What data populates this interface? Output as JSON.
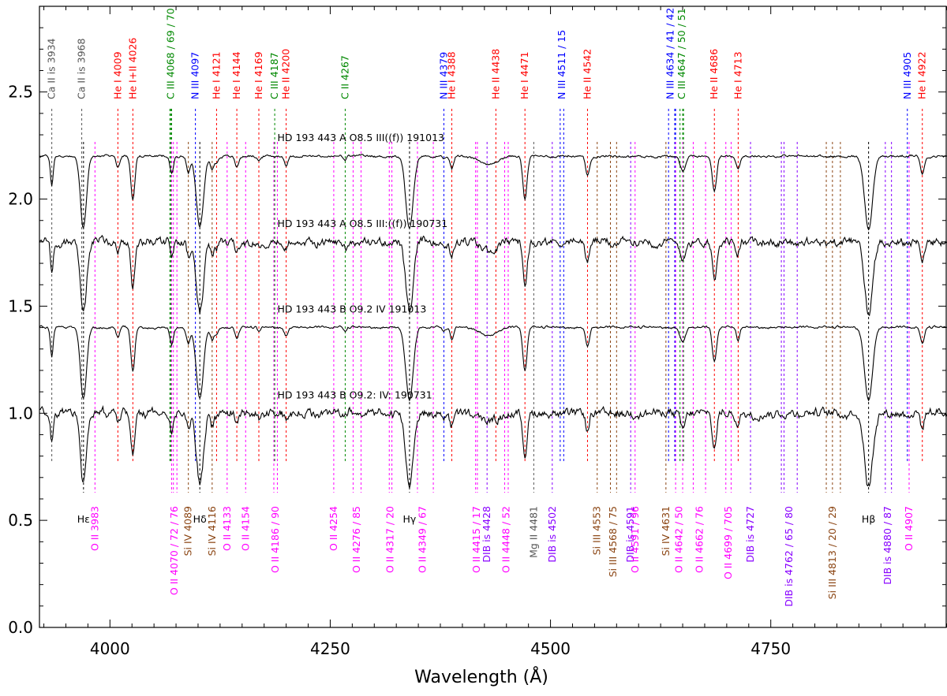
{
  "chart_data": {
    "type": "line",
    "xlabel": "Wavelength (Å)",
    "ylabel": "",
    "xlim": [
      3920,
      4950
    ],
    "ylim": [
      0.0,
      2.9
    ],
    "xticks": [
      4000,
      4250,
      4500,
      4750
    ],
    "xtick_labels": [
      "4000",
      "4250",
      "4500",
      "4750"
    ],
    "yticks": [
      0.0,
      0.5,
      1.0,
      1.5,
      2.0,
      2.5
    ],
    "ytick_labels": [
      "0.0",
      "0.5",
      "1.0",
      "1.5",
      "2.0",
      "2.5"
    ],
    "colors": {
      "spectrum": "#000000",
      "ca": "#555555",
      "he": "#ff0000",
      "c": "#008800",
      "n": "#0000ff",
      "o": "#ff00ff",
      "si": "#8b4513",
      "dib": "#8800ff",
      "h": "#000000",
      "mg": "#555555"
    },
    "series": [
      {
        "name": "HD 193 443 A   O8.5 III((f)) 191013",
        "offset": 2.2,
        "noise": 0.008,
        "depth_scale": 1.0,
        "label_x": 4190
      },
      {
        "name": "HD 193 443 A   O8.5 III:((f)) 190731",
        "offset": 1.8,
        "noise": 0.028,
        "depth_scale": 1.0,
        "label_x": 4190
      },
      {
        "name": "HD 193 443 B   O9.2 IV 191013",
        "offset": 1.4,
        "noise": 0.008,
        "depth_scale": 1.0,
        "label_x": 4190
      },
      {
        "name": "HD 193 443 B   O9.2: IV: 190731",
        "offset": 1.0,
        "noise": 0.03,
        "depth_scale": 1.0,
        "label_x": 4190
      }
    ],
    "absorption_lines": [
      {
        "x": 3934,
        "depth": 0.14,
        "width": 1.5
      },
      {
        "x": 3968,
        "depth": 0.02,
        "width": 1.5
      },
      {
        "x": 3970,
        "depth": 0.32,
        "width": 3.5
      },
      {
        "x": 4009,
        "depth": 0.05,
        "width": 2.0
      },
      {
        "x": 4026,
        "depth": 0.2,
        "width": 2.2
      },
      {
        "x": 4070,
        "depth": 0.08,
        "width": 2.0
      },
      {
        "x": 4089,
        "depth": 0.07,
        "width": 2.0
      },
      {
        "x": 4102,
        "depth": 0.33,
        "width": 4.0
      },
      {
        "x": 4116,
        "depth": 0.06,
        "width": 2.0
      },
      {
        "x": 4121,
        "depth": 0.03,
        "width": 1.8
      },
      {
        "x": 4144,
        "depth": 0.05,
        "width": 2.0
      },
      {
        "x": 4169,
        "depth": 0.02,
        "width": 1.8
      },
      {
        "x": 4200,
        "depth": 0.04,
        "width": 2.0
      },
      {
        "x": 4267,
        "depth": 0.02,
        "width": 1.8
      },
      {
        "x": 4340,
        "depth": 0.34,
        "width": 4.2
      },
      {
        "x": 4379,
        "depth": 0.02,
        "width": 1.8
      },
      {
        "x": 4388,
        "depth": 0.06,
        "width": 2.0
      },
      {
        "x": 4430,
        "depth": 0.04,
        "width": 9.0
      },
      {
        "x": 4471,
        "depth": 0.2,
        "width": 2.4
      },
      {
        "x": 4542,
        "depth": 0.09,
        "width": 2.2
      },
      {
        "x": 4650,
        "depth": 0.07,
        "width": 3.0
      },
      {
        "x": 4686,
        "depth": 0.16,
        "width": 2.4
      },
      {
        "x": 4713,
        "depth": 0.06,
        "width": 2.0
      },
      {
        "x": 4861,
        "depth": 0.34,
        "width": 4.5
      },
      {
        "x": 4922,
        "depth": 0.08,
        "width": 2.2
      }
    ],
    "line_markers": [
      {
        "x": 3934,
        "c": "ca"
      },
      {
        "x": 3968,
        "c": "ca"
      },
      {
        "x": 4009,
        "c": "he"
      },
      {
        "x": 4026,
        "c": "he"
      },
      {
        "x": 4068,
        "c": "c"
      },
      {
        "x": 4069,
        "c": "c"
      },
      {
        "x": 4070,
        "c": "c"
      },
      {
        "x": 4097,
        "c": "n"
      },
      {
        "x": 4121,
        "c": "he"
      },
      {
        "x": 4144,
        "c": "he"
      },
      {
        "x": 4169,
        "c": "he"
      },
      {
        "x": 4187,
        "c": "c"
      },
      {
        "x": 4200,
        "c": "he"
      },
      {
        "x": 4267,
        "c": "c"
      },
      {
        "x": 4379,
        "c": "n"
      },
      {
        "x": 4388,
        "c": "he"
      },
      {
        "x": 4438,
        "c": "he"
      },
      {
        "x": 4471,
        "c": "he"
      },
      {
        "x": 4511,
        "c": "n"
      },
      {
        "x": 4515,
        "c": "n"
      },
      {
        "x": 4542,
        "c": "he"
      },
      {
        "x": 4634,
        "c": "n"
      },
      {
        "x": 4641,
        "c": "n"
      },
      {
        "x": 4642,
        "c": "n"
      },
      {
        "x": 4647,
        "c": "c"
      },
      {
        "x": 4650,
        "c": "c"
      },
      {
        "x": 4651,
        "c": "c"
      },
      {
        "x": 4686,
        "c": "he"
      },
      {
        "x": 4713,
        "c": "he"
      },
      {
        "x": 4905,
        "c": "n"
      },
      {
        "x": 4922,
        "c": "he"
      }
    ],
    "lower_markers": [
      {
        "x": 3970,
        "c": "h"
      },
      {
        "x": 3983,
        "c": "o"
      },
      {
        "x": 4070,
        "c": "o"
      },
      {
        "x": 4072,
        "c": "o"
      },
      {
        "x": 4076,
        "c": "o"
      },
      {
        "x": 4089,
        "c": "si"
      },
      {
        "x": 4102,
        "c": "h"
      },
      {
        "x": 4116,
        "c": "si"
      },
      {
        "x": 4133,
        "c": "o"
      },
      {
        "x": 4154,
        "c": "o"
      },
      {
        "x": 4186,
        "c": "o"
      },
      {
        "x": 4190,
        "c": "o"
      },
      {
        "x": 4254,
        "c": "o"
      },
      {
        "x": 4276,
        "c": "o"
      },
      {
        "x": 4285,
        "c": "o"
      },
      {
        "x": 4317,
        "c": "o"
      },
      {
        "x": 4320,
        "c": "o"
      },
      {
        "x": 4340,
        "c": "h"
      },
      {
        "x": 4349,
        "c": "o"
      },
      {
        "x": 4367,
        "c": "o"
      },
      {
        "x": 4415,
        "c": "o"
      },
      {
        "x": 4417,
        "c": "o"
      },
      {
        "x": 4428,
        "c": "dib"
      },
      {
        "x": 4448,
        "c": "o"
      },
      {
        "x": 4452,
        "c": "o"
      },
      {
        "x": 4481,
        "c": "mg"
      },
      {
        "x": 4502,
        "c": "dib"
      },
      {
        "x": 4553,
        "c": "si"
      },
      {
        "x": 4568,
        "c": "si"
      },
      {
        "x": 4575,
        "c": "si"
      },
      {
        "x": 4591,
        "c": "dib"
      },
      {
        "x": 4596,
        "c": "o"
      },
      {
        "x": 4631,
        "c": "si"
      },
      {
        "x": 4642,
        "c": "o"
      },
      {
        "x": 4650,
        "c": "o"
      },
      {
        "x": 4662,
        "c": "o"
      },
      {
        "x": 4676,
        "c": "o"
      },
      {
        "x": 4699,
        "c": "o"
      },
      {
        "x": 4705,
        "c": "o"
      },
      {
        "x": 4727,
        "c": "dib"
      },
      {
        "x": 4762,
        "c": "dib"
      },
      {
        "x": 4765,
        "c": "dib"
      },
      {
        "x": 4780,
        "c": "dib"
      },
      {
        "x": 4813,
        "c": "si"
      },
      {
        "x": 4820,
        "c": "si"
      },
      {
        "x": 4829,
        "c": "si"
      },
      {
        "x": 4861,
        "c": "h"
      },
      {
        "x": 4880,
        "c": "dib"
      },
      {
        "x": 4887,
        "c": "dib"
      },
      {
        "x": 4907,
        "c": "o"
      }
    ],
    "top_labels": [
      {
        "x": 3934,
        "text": "Ca II is 3934",
        "c": "ca"
      },
      {
        "x": 3968,
        "text": "Ca II is 3968",
        "c": "ca"
      },
      {
        "x": 4009,
        "text": "He I 4009",
        "c": "he"
      },
      {
        "x": 4026,
        "text": "He I+II 4026",
        "c": "he"
      },
      {
        "x": 4069,
        "text": "C III 4068 / 69 / 70",
        "c": "c"
      },
      {
        "x": 4097,
        "text": "N III 4097",
        "c": "n"
      },
      {
        "x": 4121,
        "text": "He I 4121",
        "c": "he"
      },
      {
        "x": 4144,
        "text": "He I 4144",
        "c": "he"
      },
      {
        "x": 4169,
        "text": "He I 4169",
        "c": "he"
      },
      {
        "x": 4187,
        "text": "C III 4187",
        "c": "c"
      },
      {
        "x": 4200,
        "text": "He II 4200",
        "c": "he"
      },
      {
        "x": 4267,
        "text": "C II 4267",
        "c": "c"
      },
      {
        "x": 4379,
        "text": "N III 4379",
        "c": "n"
      },
      {
        "x": 4388,
        "text": "He I 4388",
        "c": "he"
      },
      {
        "x": 4438,
        "text": "He II 4438",
        "c": "he"
      },
      {
        "x": 4471,
        "text": "He I 4471",
        "c": "he"
      },
      {
        "x": 4513,
        "text": "N III 4511 / 15",
        "c": "n"
      },
      {
        "x": 4542,
        "text": "He II 4542",
        "c": "he"
      },
      {
        "x": 4636,
        "text": "N III 4634 / 41 / 42",
        "c": "n"
      },
      {
        "x": 4649,
        "text": "C III 4647 / 50 / 51",
        "c": "c"
      },
      {
        "x": 4686,
        "text": "He II 4686",
        "c": "he"
      },
      {
        "x": 4713,
        "text": "He I 4713",
        "c": "he"
      },
      {
        "x": 4905,
        "text": "N III 4905",
        "c": "n"
      },
      {
        "x": 4922,
        "text": "He I 4922",
        "c": "he"
      }
    ],
    "bottom_labels": [
      {
        "x": 3970,
        "text": "Hε",
        "c": "h",
        "short": true
      },
      {
        "x": 3983,
        "text": "O II 3983",
        "c": "o"
      },
      {
        "x": 4073,
        "text": "O II 4070 / 72 / 76",
        "c": "o"
      },
      {
        "x": 4089,
        "text": "Si IV 4089",
        "c": "si"
      },
      {
        "x": 4102,
        "text": "Hδ",
        "c": "h",
        "short": true
      },
      {
        "x": 4116,
        "text": "Si IV 4116",
        "c": "si"
      },
      {
        "x": 4133,
        "text": "O II 4133",
        "c": "o"
      },
      {
        "x": 4154,
        "text": "O II 4154",
        "c": "o"
      },
      {
        "x": 4188,
        "text": "O II 4186 / 90",
        "c": "o"
      },
      {
        "x": 4254,
        "text": "O II 4254",
        "c": "o"
      },
      {
        "x": 4280,
        "text": "O II 4276 / 85",
        "c": "o"
      },
      {
        "x": 4318,
        "text": "O II 4317 / 20",
        "c": "o"
      },
      {
        "x": 4340,
        "text": "Hγ",
        "c": "h",
        "short": true
      },
      {
        "x": 4355,
        "text": "O II 4349 / 67",
        "c": "o"
      },
      {
        "x": 4416,
        "text": "O II 4415 / 17",
        "c": "o"
      },
      {
        "x": 4428,
        "text": "DIB is 4428",
        "c": "dib"
      },
      {
        "x": 4450,
        "text": "O II 4448 / 52",
        "c": "o"
      },
      {
        "x": 4481,
        "text": "Mg II 4481",
        "c": "mg"
      },
      {
        "x": 4502,
        "text": "DIB is 4502",
        "c": "dib"
      },
      {
        "x": 4553,
        "text": "Si III 4553",
        "c": "si"
      },
      {
        "x": 4571,
        "text": "Si III 4568 / 75",
        "c": "si"
      },
      {
        "x": 4591,
        "text": "DIB is 4591",
        "c": "dib"
      },
      {
        "x": 4596,
        "text": "O II 4591 / 96",
        "c": "o"
      },
      {
        "x": 4631,
        "text": "Si IV 4631",
        "c": "si"
      },
      {
        "x": 4646,
        "text": "O II 4642 / 50",
        "c": "o"
      },
      {
        "x": 4669,
        "text": "O II 4662 / 76",
        "c": "o"
      },
      {
        "x": 4702,
        "text": "O II 4699 / 705",
        "c": "o"
      },
      {
        "x": 4727,
        "text": "DIB is 4727",
        "c": "dib"
      },
      {
        "x": 4771,
        "text": "DIB is 4762 / 65 / 80",
        "c": "dib"
      },
      {
        "x": 4820,
        "text": "Si III 4813 / 20 / 29",
        "c": "si"
      },
      {
        "x": 4861,
        "text": "Hβ",
        "c": "h",
        "short": true
      },
      {
        "x": 4883,
        "text": "DIB is 4880 / 87",
        "c": "dib"
      },
      {
        "x": 4907,
        "text": "O II 4907",
        "c": "o"
      }
    ]
  }
}
